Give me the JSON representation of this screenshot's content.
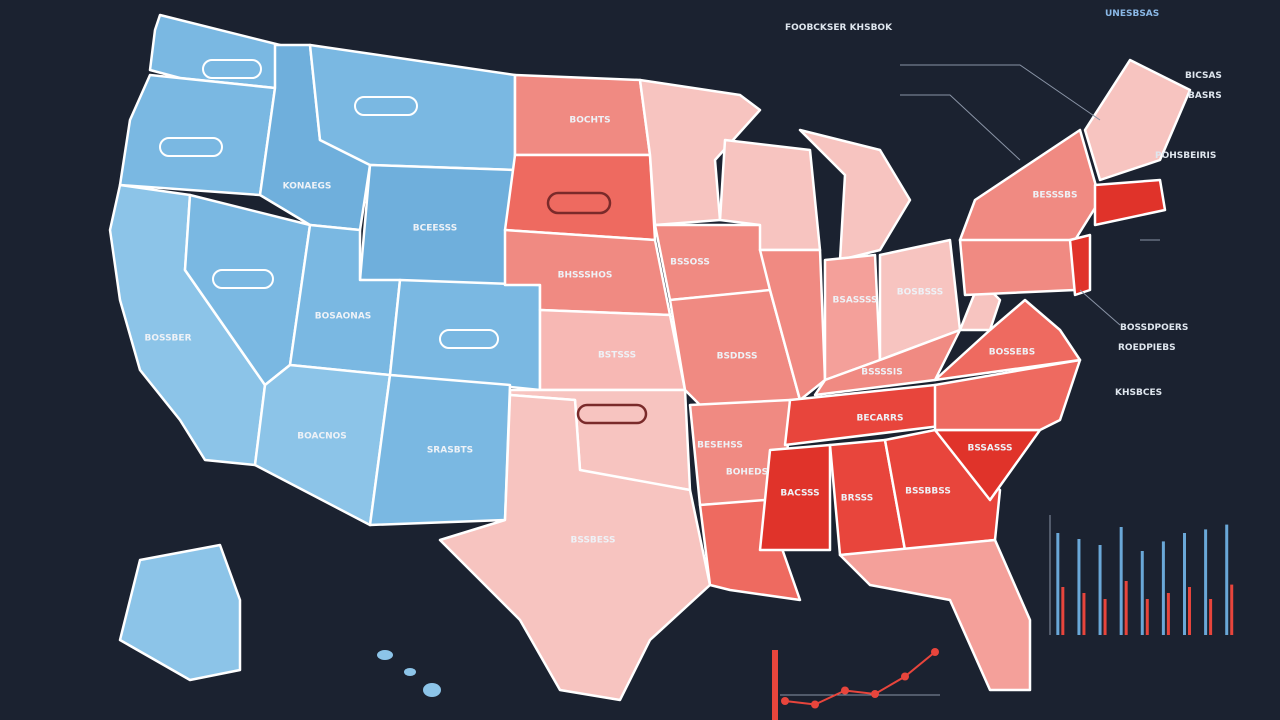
{
  "header": {
    "title": "FOOBCKSER KHSBOK",
    "top_right": "UNESBSAS"
  },
  "annotations": [
    "BICSAS",
    "BASRS",
    "POHSBEIRIS",
    "BOSSDPOERS",
    "ROEDPIEBS",
    "KHSBCES"
  ],
  "state_labels": [
    "BOSSBER",
    "KONAEGS",
    "BCEESSS",
    "BOSAONAS",
    "BOACNOS",
    "SRASBTS",
    "BOCHTS",
    "BHSSSHOS",
    "BSTSSS",
    "BSSBESS",
    "BSSOSS",
    "BSDDSS",
    "BESEHSS",
    "BOHEDS",
    "BACSSS",
    "BRSSS",
    "BSSBBSS",
    "BSSASSS",
    "BECARRS",
    "BSSSSIS",
    "BSASSSS",
    "BOSBSSS",
    "BOSSEBS",
    "BESSSBS"
  ],
  "chart_data": [
    {
      "type": "bar",
      "categories": [
        null,
        null,
        null,
        null,
        null,
        null,
        null,
        null,
        null
      ],
      "ylim": [
        0,
        100
      ],
      "series": [
        {
          "name": null,
          "color": "#6aa8d8",
          "values": [
            85,
            80,
            75,
            90,
            70,
            78,
            85,
            88,
            92
          ]
        },
        {
          "name": null,
          "color": "#e8453c",
          "values": [
            40,
            35,
            30,
            45,
            30,
            35,
            40,
            30,
            42
          ]
        }
      ]
    },
    {
      "type": "line",
      "categories": [
        null,
        null,
        null,
        null,
        null,
        null
      ],
      "ylim": [
        0,
        100
      ],
      "color": "#e8453c",
      "values": [
        20,
        15,
        35,
        30,
        55,
        90
      ]
    }
  ]
}
